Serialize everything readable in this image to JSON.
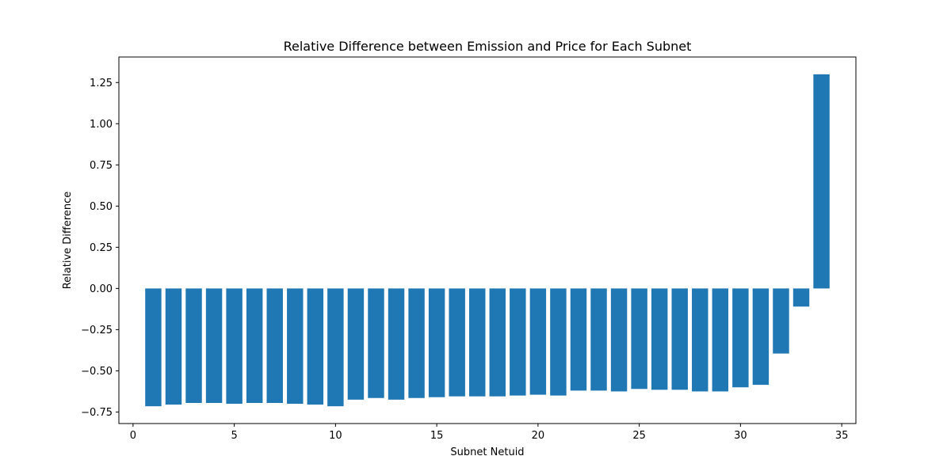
{
  "chart_data": {
    "type": "bar",
    "title": "Relative Difference between Emission and Price for Each Subnet",
    "xlabel": "Subnet Netuid",
    "ylabel": "Relative Difference",
    "x": [
      1,
      2,
      3,
      4,
      5,
      6,
      7,
      8,
      9,
      10,
      11,
      12,
      13,
      14,
      15,
      16,
      17,
      18,
      19,
      20,
      21,
      22,
      23,
      24,
      25,
      26,
      27,
      28,
      29,
      30,
      31,
      32,
      33,
      34
    ],
    "values": [
      -0.715,
      -0.705,
      -0.695,
      -0.695,
      -0.7,
      -0.695,
      -0.695,
      -0.7,
      -0.705,
      -0.715,
      -0.675,
      -0.665,
      -0.675,
      -0.665,
      -0.66,
      -0.655,
      -0.655,
      -0.655,
      -0.65,
      -0.645,
      -0.65,
      -0.62,
      -0.62,
      -0.625,
      -0.61,
      -0.615,
      -0.615,
      -0.625,
      -0.625,
      -0.6,
      -0.585,
      -0.395,
      -0.11,
      1.3
    ],
    "xlim": [
      -0.7,
      35.7
    ],
    "ylim": [
      -0.82,
      1.405
    ],
    "xticks": [
      0,
      5,
      10,
      15,
      20,
      25,
      30,
      35
    ],
    "xtick_labels": [
      "0",
      "5",
      "10",
      "15",
      "20",
      "25",
      "30",
      "35"
    ],
    "yticks": [
      -0.75,
      -0.5,
      -0.25,
      0.0,
      0.25,
      0.5,
      0.75,
      1.0,
      1.25
    ],
    "ytick_labels": [
      "−0.75",
      "−0.50",
      "−0.25",
      "0.00",
      "0.25",
      "0.50",
      "0.75",
      "1.00",
      "1.25"
    ],
    "bar_color": "#1f77b4",
    "grid": false
  }
}
